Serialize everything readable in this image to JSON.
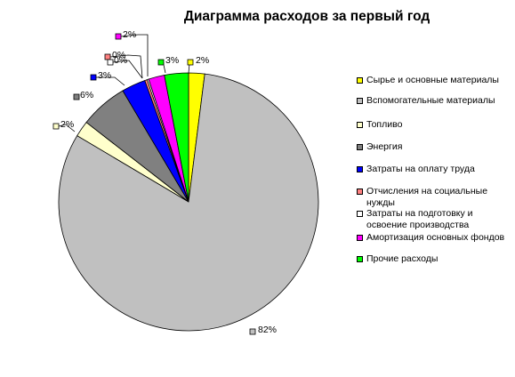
{
  "title": "Диаграмма расходов за первый год",
  "chart_data": {
    "type": "pie",
    "title": "Диаграмма расходов за первый год",
    "legend_position": "right",
    "slices": [
      {
        "name": "Сырье и основные материалы",
        "value": 2,
        "label": "2%",
        "color": "#ffff00"
      },
      {
        "name": "Вспомогательные материалы",
        "value": 82,
        "label": "82%",
        "color": "#c0c0c0"
      },
      {
        "name": "Топливо",
        "value": 2,
        "label": "2%",
        "color": "#ffffcc"
      },
      {
        "name": "Энергия",
        "value": 6,
        "label": "6%",
        "color": "#808080"
      },
      {
        "name": "Затраты на оплату труда",
        "value": 3,
        "label": "3%",
        "color": "#0000ff"
      },
      {
        "name": "Отчисления на социальные нужды",
        "value": 0.3,
        "label": "0%",
        "color": "#ff8080"
      },
      {
        "name": "Затраты на подготовку и освоение производства",
        "value": 0.2,
        "label": "0%",
        "color": "#ffffff"
      },
      {
        "name": "Амортизация основных фондов",
        "value": 2,
        "label": "2%",
        "color": "#ff00ff"
      },
      {
        "name": "Прочие расходы",
        "value": 3,
        "label": "3%",
        "color": "#00ff00"
      }
    ],
    "legend": [
      "Сырье и основные материалы",
      "Вспомогательные материалы",
      "Топливо",
      "Энергия",
      "Затраты на оплату труда",
      "Отчисления на социальные нужды",
      "Затраты на подготовку и освоение производства",
      "Амортизация основных фондов",
      "Прочие расходы"
    ]
  }
}
